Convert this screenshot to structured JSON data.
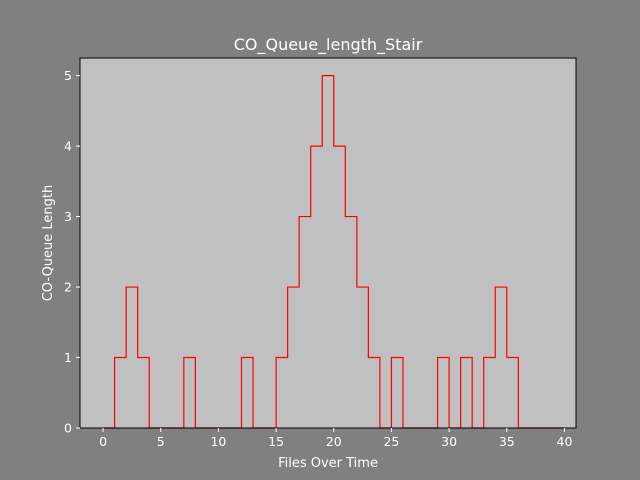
{
  "chart_data": {
    "type": "line",
    "drawstyle": "steps-post",
    "title": "CO_Queue_length_Stair",
    "xlabel": "Files Over Time",
    "ylabel": "CO-Queue Length",
    "xlim": [
      -2,
      41
    ],
    "ylim": [
      0,
      5.25
    ],
    "xticks": [
      0,
      5,
      10,
      15,
      20,
      25,
      30,
      35,
      40
    ],
    "yticks": [
      0,
      1,
      2,
      3,
      4,
      5
    ],
    "grid": false,
    "legend": false,
    "series": [
      {
        "color": "#ff0000",
        "x": [
          0,
          1,
          2,
          3,
          4,
          5,
          6,
          7,
          8,
          9,
          10,
          11,
          12,
          13,
          14,
          15,
          16,
          17,
          18,
          19,
          20,
          21,
          22,
          23,
          24,
          25,
          26,
          27,
          28,
          29,
          30,
          31,
          32,
          33,
          34,
          35,
          36,
          37,
          38,
          39,
          40
        ],
        "y": [
          0,
          1,
          2,
          1,
          0,
          0,
          0,
          1,
          0,
          0,
          0,
          0,
          1,
          0,
          0,
          1,
          2,
          3,
          4,
          5,
          4,
          3,
          2,
          1,
          0,
          1,
          0,
          0,
          0,
          1,
          0,
          1,
          0,
          1,
          2,
          1,
          0,
          0,
          0,
          0,
          0
        ]
      }
    ]
  },
  "colors": {
    "figure_background": "#808080",
    "axes_background": "#c0c0c0",
    "text": "#ffffff",
    "line": "#ff0000"
  }
}
